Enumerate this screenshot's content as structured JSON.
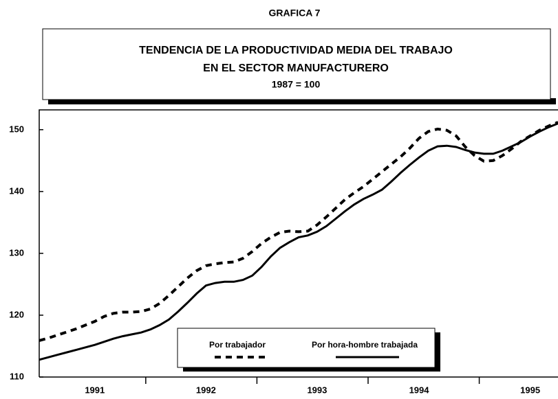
{
  "chart_data": {
    "type": "line",
    "heading": "GRAFICA 7",
    "title": "TENDENCIA DE LA PRODUCTIVIDAD MEDIA DEL TRABAJO",
    "subtitle": "EN EL SECTOR MANUFACTURERO",
    "base": "1987 = 100",
    "categories": [
      null,
      null,
      null,
      null,
      null,
      null,
      "1991",
      null,
      null,
      null,
      null,
      null,
      null,
      null,
      null,
      null,
      null,
      null,
      "1992",
      null,
      null,
      null,
      null,
      null,
      null,
      null,
      null,
      null,
      null,
      null,
      "1993",
      null,
      null,
      null,
      null,
      null,
      null,
      null,
      null,
      null,
      null,
      "1994",
      null,
      null,
      null,
      null,
      null,
      null,
      null,
      null,
      null,
      null,
      null,
      "1995",
      null,
      null,
      null
    ],
    "series": [
      {
        "name": "Por trabajador",
        "color": "#000",
        "dash": true,
        "values": [
          115.9,
          116.3,
          116.8,
          117.3,
          117.8,
          118.4,
          119.0,
          119.8,
          120.3,
          120.5,
          120.5,
          120.6,
          121.0,
          121.9,
          123.2,
          124.6,
          126.0,
          127.2,
          128.0,
          128.3,
          128.5,
          128.6,
          129.2,
          130.3,
          131.6,
          132.6,
          133.4,
          133.6,
          133.5,
          133.6,
          134.6,
          135.9,
          137.3,
          138.7,
          139.8,
          140.8,
          142.0,
          143.2,
          144.4,
          145.6,
          147.0,
          148.6,
          149.7,
          150.1,
          149.9,
          149.0,
          147.2,
          145.8,
          144.9,
          145.0,
          145.8,
          146.9,
          148.1,
          149.0,
          149.9,
          150.6,
          151.2
        ]
      },
      {
        "name": "Por hora-hombre trabajada",
        "color": "#000",
        "dash": false,
        "values": [
          112.8,
          113.2,
          113.6,
          114.0,
          114.4,
          114.8,
          115.2,
          115.7,
          116.2,
          116.6,
          116.9,
          117.2,
          117.7,
          118.4,
          119.3,
          120.6,
          122.0,
          123.5,
          124.8,
          125.2,
          125.4,
          125.4,
          125.7,
          126.4,
          127.8,
          129.5,
          130.9,
          131.8,
          132.6,
          132.9,
          133.5,
          134.4,
          135.6,
          136.8,
          137.9,
          138.8,
          139.5,
          140.3,
          141.6,
          143.0,
          144.3,
          145.5,
          146.6,
          147.3,
          147.4,
          147.2,
          146.7,
          146.3,
          146.1,
          146.1,
          146.6,
          147.3,
          148.0,
          148.9,
          149.7,
          150.4,
          151.0
        ]
      }
    ],
    "ylim": [
      110,
      153.2
    ],
    "yticks": [
      110,
      120,
      130,
      140,
      150
    ],
    "grid": false,
    "legend": "bottom"
  }
}
